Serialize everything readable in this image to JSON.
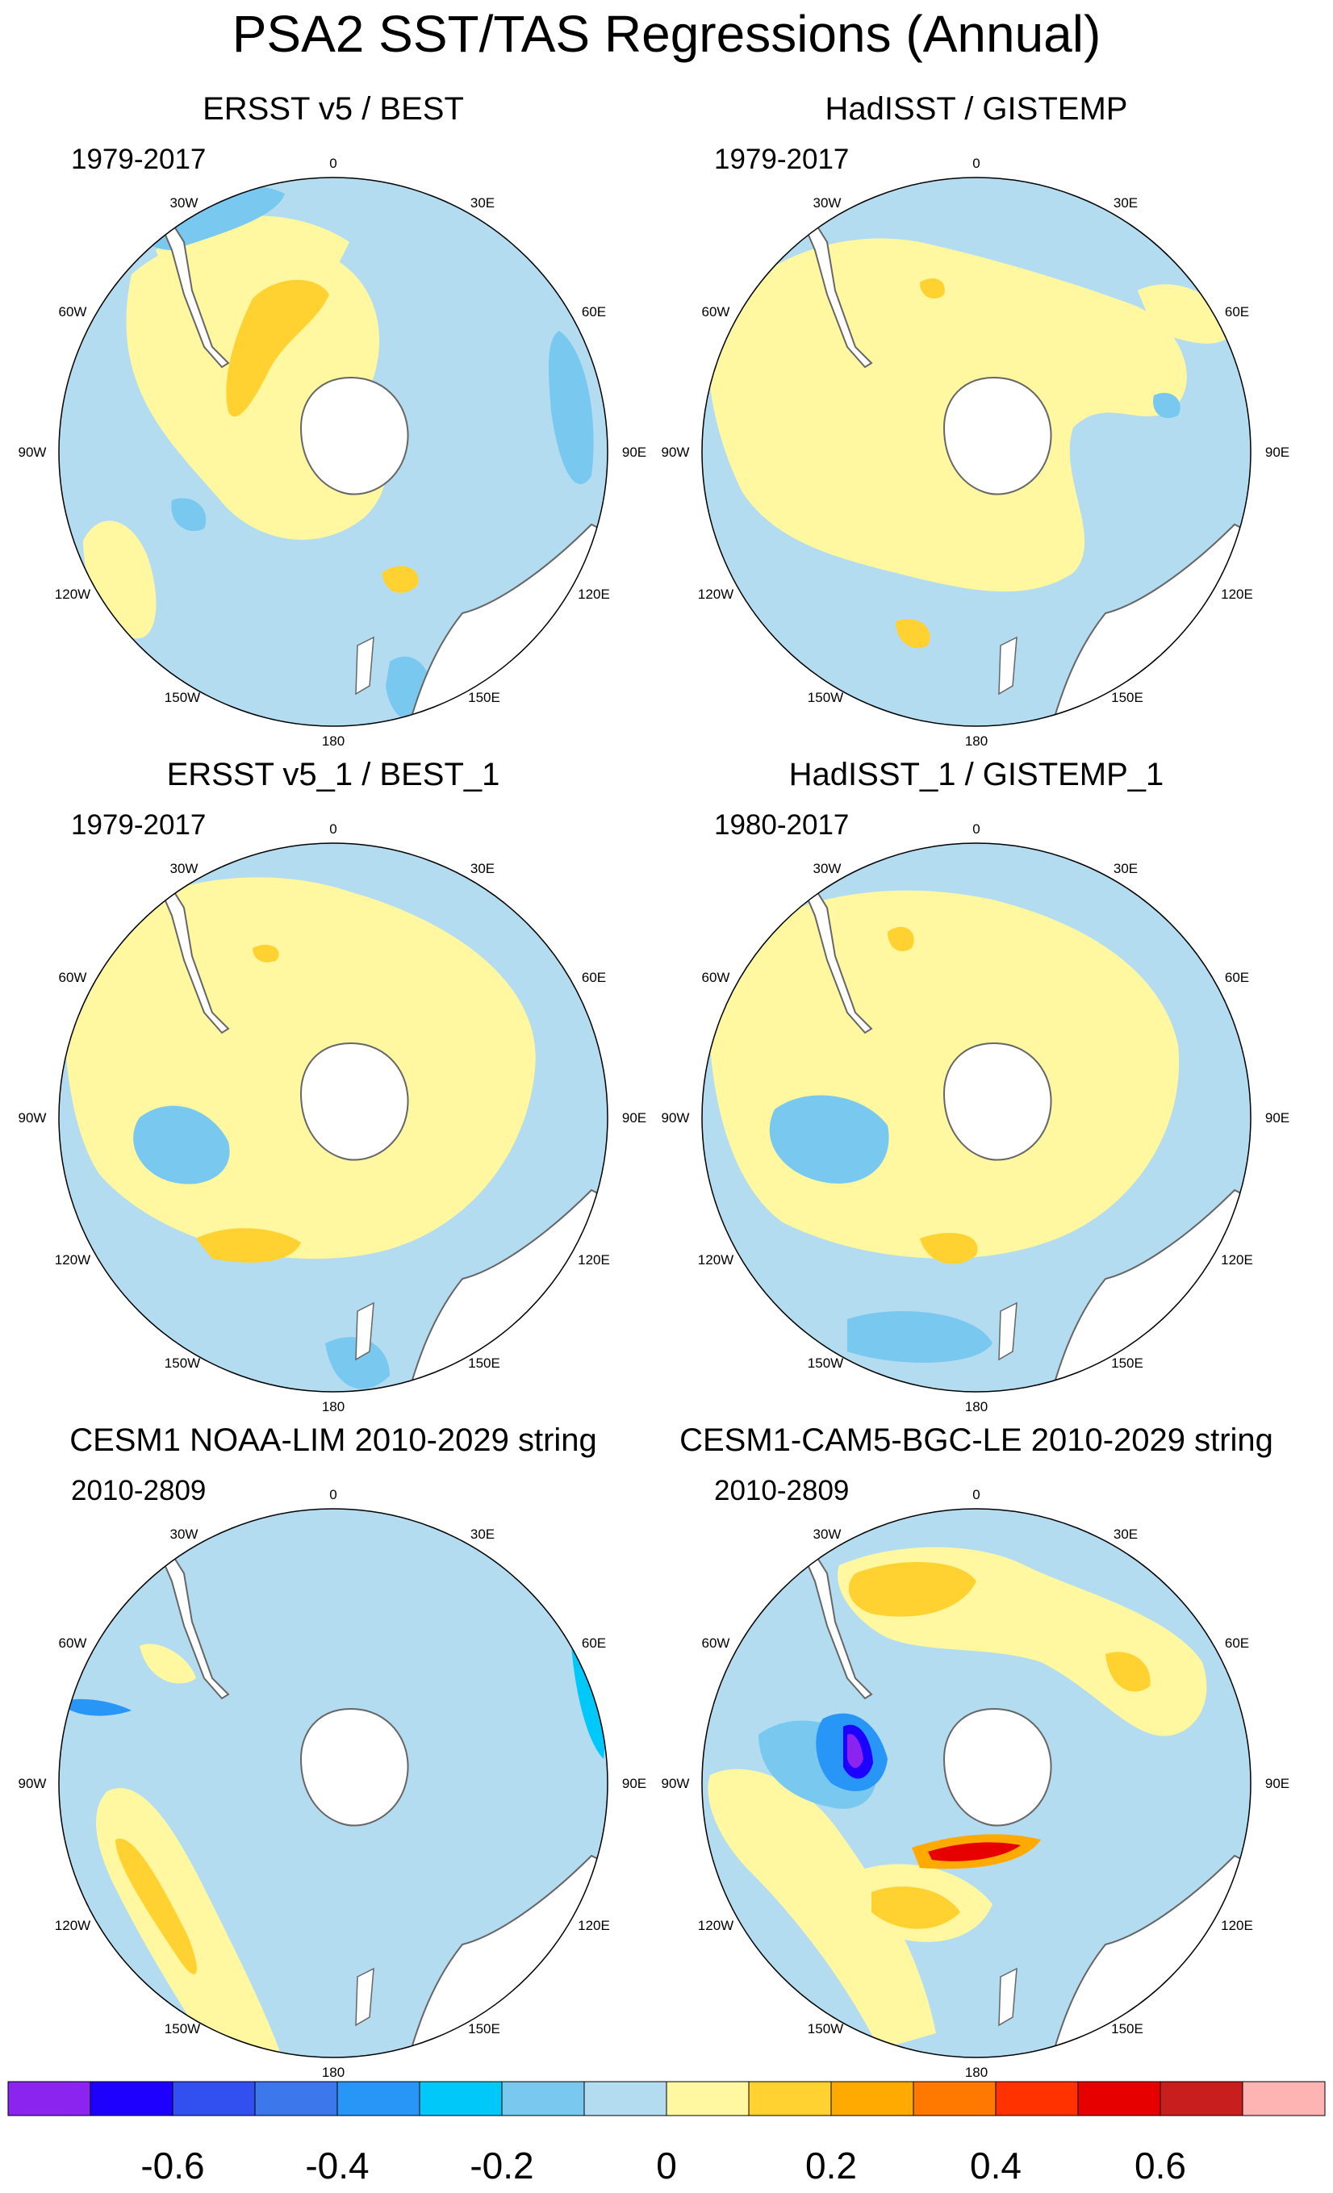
{
  "main_title": "PSA2 SST/TAS Regressions (Annual)",
  "colors": {
    "land": "#ffffff",
    "coast": "#666666",
    "frame": "#000000",
    "neutral_fill": "#b4dcf0"
  },
  "panels": [
    {
      "title": "ERSST v5 / BEST",
      "period": "1979-2017"
    },
    {
      "title": "HadISST / GISTEMP",
      "period": "1979-2017"
    },
    {
      "title": "ERSST v5_1 / BEST_1",
      "period": "1979-2017"
    },
    {
      "title": "HadISST_1 / GISTEMP_1",
      "period": "1980-2017"
    },
    {
      "title": "CESM1 NOAA-LIM 2010-2029 string",
      "period": "2010-2809"
    },
    {
      "title": "CESM1-CAM5-BGC-LE 2010-2029 string",
      "period": "2010-2809"
    }
  ],
  "longitude_labels": [
    "0",
    "30E",
    "60E",
    "90E",
    "120E",
    "150E",
    "180",
    "150W",
    "120W",
    "90W",
    "60W",
    "30W"
  ],
  "colorbar": {
    "colors": [
      "#8c24f0",
      "#1e00ff",
      "#3250f0",
      "#3c78ec",
      "#2896f7",
      "#00c8f8",
      "#78c8f0",
      "#b4dcf0",
      "#fff8a0",
      "#ffd232",
      "#ffaa00",
      "#ff7800",
      "#ff3200",
      "#e60000",
      "#c81e1e",
      "#ffb4b4"
    ],
    "tick_labels": [
      "-0.6",
      "-0.4",
      "-0.2",
      "0",
      "0.2",
      "0.4",
      "0.6"
    ]
  }
}
